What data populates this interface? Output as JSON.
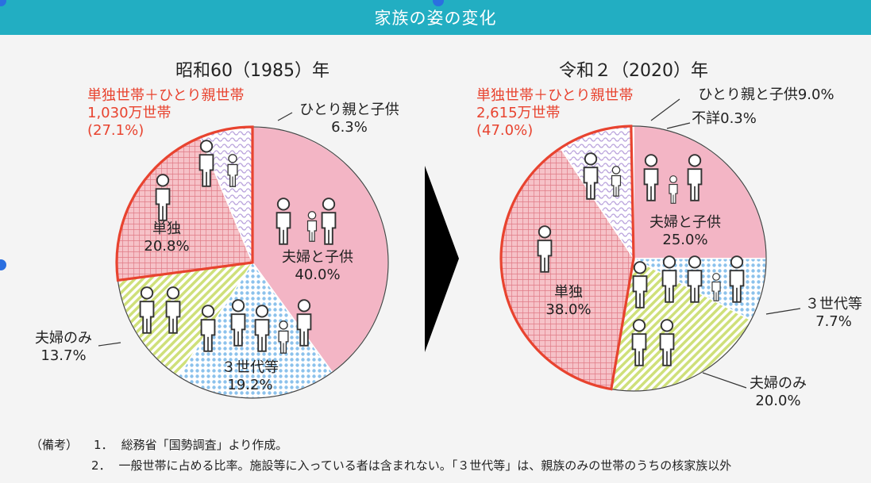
{
  "header": {
    "title": "家族の姿の変化"
  },
  "colors": {
    "accent": "#22aec2",
    "highlight_red": "#e8432f",
    "couple_child": "#f3b5c5",
    "three_gen": "#a6cfee",
    "couple_only": "#d4e48a",
    "single": "#f1a7b0",
    "single_parent": "#c8b8e2",
    "unknown": "#ffffff"
  },
  "chart_data": [
    {
      "type": "pie",
      "title": "昭和60（1985）年",
      "slices": [
        {
          "label": "夫婦と子供",
          "value": 40.0,
          "value_text": "40.0%",
          "color": "#f3b5c5",
          "pattern": "dense-checks",
          "label_pos": "inside"
        },
        {
          "label": "３世代等",
          "value": 19.2,
          "value_text": "19.2%",
          "color": "#a6cfee",
          "pattern": "dots",
          "label_pos": "inside"
        },
        {
          "label": "夫婦のみ",
          "value": 13.7,
          "value_text": "13.7%",
          "color": "#d4e48a",
          "pattern": "diagonal",
          "label_pos": "outside"
        },
        {
          "label": "単独",
          "value": 20.8,
          "value_text": "20.8%",
          "color": "#f1a7b0",
          "pattern": "grid",
          "label_pos": "inside"
        },
        {
          "label": "ひとり親と子供",
          "value": 6.3,
          "value_text": "6.3%",
          "color": "#c8b8e2",
          "pattern": "waves",
          "label_pos": "outside"
        }
      ],
      "highlight": {
        "label": "単独世帯＋ひとり親世帯",
        "count": "1,030万世帯",
        "percent": "(27.1%)"
      }
    },
    {
      "type": "pie",
      "title": "令和２（2020）年",
      "slices": [
        {
          "label": "夫婦と子供",
          "value": 25.0,
          "value_text": "25.0%",
          "color": "#f3b5c5",
          "pattern": "dense-checks",
          "label_pos": "inside"
        },
        {
          "label": "３世代等",
          "value": 7.7,
          "value_text": "7.7%",
          "color": "#a6cfee",
          "pattern": "dots",
          "label_pos": "outside"
        },
        {
          "label": "夫婦のみ",
          "value": 20.0,
          "value_text": "20.0%",
          "color": "#d4e48a",
          "pattern": "diagonal",
          "label_pos": "outside"
        },
        {
          "label": "単独",
          "value": 38.0,
          "value_text": "38.0%",
          "color": "#f1a7b0",
          "pattern": "grid",
          "label_pos": "inside"
        },
        {
          "label": "ひとり親と子供",
          "value": 9.0,
          "value_text": "9.0%",
          "color": "#c8b8e2",
          "pattern": "waves",
          "label_pos": "outside"
        },
        {
          "label": "不詳",
          "value": 0.3,
          "value_text": "0.3%",
          "color": "#ffffff",
          "pattern": "none",
          "label_pos": "outside"
        }
      ],
      "highlight": {
        "label": "単独世帯＋ひとり親世帯",
        "count": "2,615万世帯",
        "percent": "(47.0%)"
      }
    }
  ],
  "notes": {
    "prefix": "（備考）",
    "items": [
      {
        "num": "1．",
        "text": "総務省「国勢調査」より作成。"
      },
      {
        "num": "2．",
        "text": "一般世帯に占める比率。施設等に入っている者は含まれない。「３世代等」は、親族のみの世帯のうちの核家族以外"
      }
    ]
  }
}
